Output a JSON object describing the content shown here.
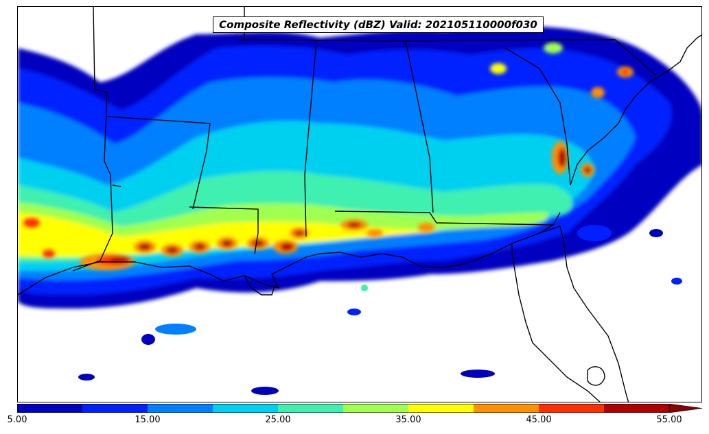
{
  "map": {
    "title": "Composite Reflectivity (dBZ) Valid: 202105110000f030",
    "variable": "Composite Reflectivity",
    "units": "dBZ",
    "valid_time": "202105110000",
    "forecast_hour": "f030"
  },
  "colorbar": {
    "bins": [
      {
        "min": 5,
        "max": 10,
        "color": "#0000c0"
      },
      {
        "min": 10,
        "max": 15,
        "color": "#0020ff"
      },
      {
        "min": 15,
        "max": 20,
        "color": "#0080ff"
      },
      {
        "min": 20,
        "max": 25,
        "color": "#00d0f0"
      },
      {
        "min": 25,
        "max": 30,
        "color": "#40f0b0"
      },
      {
        "min": 30,
        "max": 35,
        "color": "#a0ff50"
      },
      {
        "min": 35,
        "max": 40,
        "color": "#ffff00"
      },
      {
        "min": 40,
        "max": 45,
        "color": "#ff9000"
      },
      {
        "min": 45,
        "max": 50,
        "color": "#ff3000"
      },
      {
        "min": 50,
        "max": 55,
        "color": "#b00000"
      }
    ],
    "extend": "max",
    "extend_color": "#8b0000",
    "ticks": [
      "5.00",
      "15.00",
      "25.00",
      "35.00",
      "45.00",
      "55.00"
    ]
  }
}
